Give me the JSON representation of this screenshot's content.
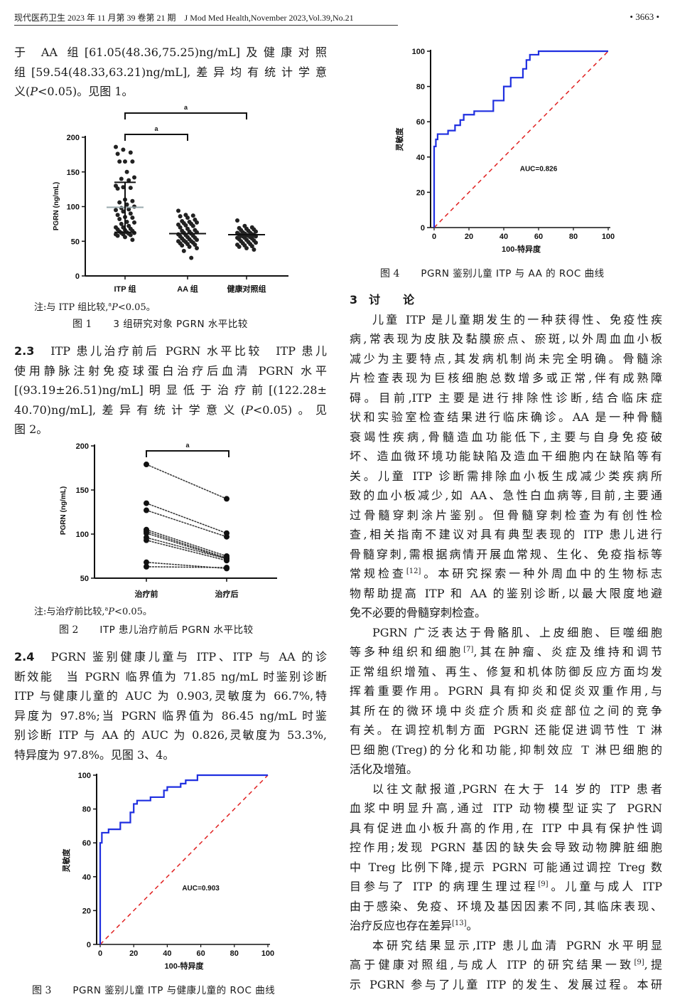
{
  "header": {
    "journal": "现代医药卫生 2023 年 11 月第 39 卷第 21 期　J Mod Med Health,November 2023,Vol.39,No.21",
    "page": "• 3663 •"
  },
  "left": {
    "para_intro": [
      [
        "于 AA 组[61.05(48.36,75.25)ng/mL]及健康对照"
      ],
      [
        "组[59.54(48.33,63.21)ng/mL],差异均有统计学意"
      ],
      [
        "义(",
        {
          "i": "P"
        },
        "<0.05)。见图 1。"
      ]
    ],
    "section_2_3": [
      [
        {
          "b": "2.3"
        },
        "　ITP 患儿治疗前后 PGRN 水平比较　ITP 患儿"
      ],
      [
        "使用静脉注射免疫球蛋白治疗后血清 PGRN 水平"
      ],
      [
        "[(93.19±26.51)ng/mL]明显低于治疗前[(122.28±"
      ],
      [
        "40.70)ng/mL],差异有统计学意义(",
        {
          "i": "P"
        },
        "<0.05)。见"
      ],
      [
        "图 2。"
      ]
    ],
    "section_2_4": [
      [
        {
          "b": "2.4"
        },
        "　PGRN 鉴别健康儿童与 ITP、ITP 与 AA 的诊"
      ],
      [
        "断效能　当 PGRN 临界值为 71.85 ng/mL 时鉴别诊断"
      ],
      [
        "ITP 与健康儿童的 AUC 为 0.903,灵敏度为 66.7%,特"
      ],
      [
        "异度为 97.8%;当 PGRN 临界值为 86.45 ng/mL 时鉴"
      ],
      [
        "别诊断 ITP 与 AA 的 AUC 为 0.826,灵敏度为 53.3%,"
      ],
      [
        "特异度为 97.8%。见图 3、4。"
      ]
    ]
  },
  "right": {
    "heading": "3　讨　　论",
    "paragraphs": [
      [
        [
          "儿童 ITP 是儿童期发生的一种获得性、免疫性疾"
        ],
        [
          "病,常表现为皮肤及黏膜瘀点、瘀斑,以外周血血小板"
        ],
        [
          "减少为主要特点,其发病机制尚未完全明确。骨髓涂"
        ],
        [
          "片检查表现为巨核细胞总数增多或正常,伴有成熟障"
        ],
        [
          "碍。目前,ITP 主要是进行排除性诊断,结合临床症"
        ],
        [
          "状和实验室检查结果进行临床确诊。AA 是一种骨髓"
        ],
        [
          "衰竭性疾病,骨髓造血功能低下,主要与自身免疫破"
        ],
        [
          "坏、造血微环境功能缺陷及造血干细胞内在缺陷等有"
        ],
        [
          "关。儿童 ITP 诊断需排除血小板生成减少类疾病所"
        ],
        [
          "致的血小板减少,如 AA、急性白血病等,目前,主要通"
        ],
        [
          "过骨髓穿刺涂片鉴别。但骨髓穿刺检查为有创性检"
        ],
        [
          "查,相关指南不建议对具有典型表现的 ITP 患儿进行"
        ],
        [
          "骨髓穿刺,需根据病情开展血常规、生化、免疫指标等"
        ],
        [
          "常规检查",
          {
            "sup": "[12]"
          },
          "。本研究探索一种外周血中的生物标志"
        ],
        [
          "物帮助提高 ITP 和 AA 的鉴别诊断,以最大限度地避"
        ],
        [
          "免不必要的骨髓穿刺检查。"
        ]
      ],
      [
        [
          "PGRN 广泛表达于骨骼肌、上皮细胞、巨噬细胞"
        ],
        [
          "等多种组织和细胞",
          {
            "sup": "[7]"
          },
          ",其在肿瘤、炎症及维持和调节"
        ],
        [
          "正常组织增殖、再生、修复和机体防御反应方面均发"
        ],
        [
          "挥着重要作用。PGRN 具有抑炎和促炎双重作用,与"
        ],
        [
          "其所在的微环境中炎症介质和炎症部位之间的竞争"
        ],
        [
          "有关。在调控机制方面 PGRN 还能促进调节性 T 淋"
        ],
        [
          "巴细胞(Treg)的分化和功能,抑制效应 T 淋巴细胞的"
        ],
        [
          "活化及增殖。"
        ]
      ],
      [
        [
          "以往文献报道,PGRN 在大于 14 岁的 ITP 患者"
        ],
        [
          "血浆中明显升高,通过 ITP 动物模型证实了 PGRN"
        ],
        [
          "具有促进血小板升高的作用,在 ITP 中具有保护性调"
        ],
        [
          "控作用;发现 PGRN 基因的缺失会导致动物脾脏细胞"
        ],
        [
          "中 Treg 比例下降,提示 PGRN 可能通过调控 Treg 数"
        ],
        [
          "目参与了 ITP 的病理生理过程",
          {
            "sup": "[9]"
          },
          "。儿童与成人 ITP"
        ],
        [
          "由于感染、免疫、环境及基因因素不同,其临床表现、"
        ],
        [
          "治疗反应也存在差异",
          {
            "sup": "[13]"
          },
          "。"
        ]
      ],
      [
        [
          "本研究结果显示,ITP 患儿血清 PGRN 水平明显"
        ],
        [
          "高于健康对照组,与成人 ITP 的研究结果一致",
          {
            "sup": "[9]"
          },
          ",提"
        ],
        [
          "示 PGRN 参与了儿童 ITP 的发生、发展过程。本研"
        ]
      ]
    ]
  },
  "figures": {
    "fig1": {
      "note_prefix": "注:与 ITP 组比较,",
      "note_sup": "a",
      "note_p": "P",
      "note_suffix": "<0.05。",
      "num": "图 1",
      "title": "3 组研究对象 PGRN 水平比较"
    },
    "fig2": {
      "note_prefix": "注:与治疗前比较,",
      "note_sup": "a",
      "note_p": "P",
      "note_suffix": "<0.05。",
      "num": "图 2",
      "title": "ITP 患儿治疗前后 PGRN 水平比较"
    },
    "fig3": {
      "num": "图 3",
      "title": "PGRN 鉴别儿童 ITP 与健康儿童的 ROC 曲线"
    },
    "fig4": {
      "num": "图 4",
      "title": "PGRN 鉴别儿童 ITP 与 AA 的 ROC 曲线"
    }
  },
  "chart_data": [
    {
      "type": "scatter",
      "ylabel": "PGRN (ng/mL)",
      "ylim": [
        0,
        200
      ],
      "yticks": [
        "0",
        "50",
        "100",
        "150",
        "200"
      ],
      "categories": [
        "ITP 组",
        "AA 组",
        "健康对照组"
      ],
      "series": [
        {
          "values": [
            186,
            182,
            178,
            176,
            165,
            165,
            165,
            150,
            142,
            140,
            138,
            130,
            128,
            127,
            126,
            110,
            108,
            106,
            103,
            100,
            98,
            96,
            95,
            93,
            90,
            88,
            85,
            84,
            82,
            78,
            77,
            75,
            72,
            70,
            70,
            68,
            67,
            66,
            65,
            64,
            63,
            62,
            62,
            61,
            60,
            60,
            59,
            58,
            56,
            52
          ]
        },
        {
          "values": [
            94,
            88,
            87,
            86,
            84,
            81,
            79,
            78,
            77,
            76,
            75,
            74,
            73,
            72,
            70,
            68,
            66,
            65,
            64,
            63,
            62,
            61,
            60,
            59,
            58,
            57,
            56,
            55,
            54,
            53,
            52,
            51,
            50,
            50,
            49,
            48,
            47,
            46,
            45,
            44,
            42,
            40,
            36,
            26
          ]
        },
        {
          "values": [
            80,
            72,
            70,
            69,
            68,
            67,
            66,
            65,
            64,
            63,
            62,
            62,
            61,
            60,
            60,
            59,
            59,
            58,
            58,
            57,
            57,
            56,
            55,
            55,
            54,
            53,
            52,
            51,
            50,
            49,
            48,
            47,
            46,
            45,
            44,
            43,
            42,
            40,
            38
          ]
        }
      ],
      "center_lines": [
        99,
        61,
        59.5
      ],
      "error_bars": [
        [
          63,
          135
        ],
        null,
        null
      ],
      "center_line_colors": [
        "#9aa9ad",
        "#111111",
        "#111111"
      ],
      "significance": [
        {
          "from": "ITP 组",
          "to": "健康对照组",
          "label": "a"
        },
        {
          "from": "ITP 组",
          "to": "AA 组",
          "label": "a"
        }
      ],
      "grid": false
    },
    {
      "type": "line",
      "ylabel": "PGRN (ng/mL)",
      "ylim": [
        50,
        200
      ],
      "yticks": [
        "50",
        "100",
        "150",
        "200"
      ],
      "categories": [
        "治疗前",
        "治疗后"
      ],
      "pairs": [
        [
          179,
          140
        ],
        [
          135,
          101
        ],
        [
          127,
          97
        ],
        [
          105,
          75
        ],
        [
          103,
          73
        ],
        [
          101,
          72
        ],
        [
          96,
          72
        ],
        [
          93,
          70
        ],
        [
          68,
          61
        ],
        [
          63,
          62
        ]
      ],
      "significance": [
        {
          "from": "治疗前",
          "to": "治疗后",
          "label": "a"
        }
      ],
      "grid": false
    },
    {
      "type": "line",
      "xlabel": "100-特异度",
      "ylabel": "灵敏度",
      "xlim": [
        0,
        100
      ],
      "ylim": [
        0,
        100
      ],
      "xticks": [
        "0",
        "20",
        "40",
        "60",
        "80",
        "100"
      ],
      "yticks": [
        "0",
        "20",
        "40",
        "60",
        "80",
        "100"
      ],
      "annotation": "AUC=0.903",
      "roc": [
        [
          0,
          0
        ],
        [
          0,
          60
        ],
        [
          1,
          60
        ],
        [
          1,
          66
        ],
        [
          5,
          66
        ],
        [
          5,
          68
        ],
        [
          12,
          68
        ],
        [
          12,
          72
        ],
        [
          18,
          72
        ],
        [
          18,
          78
        ],
        [
          20,
          78
        ],
        [
          20,
          83
        ],
        [
          22,
          83
        ],
        [
          22,
          85
        ],
        [
          30,
          85
        ],
        [
          30,
          87
        ],
        [
          38,
          87
        ],
        [
          38,
          91
        ],
        [
          40,
          91
        ],
        [
          40,
          93
        ],
        [
          48,
          93
        ],
        [
          48,
          95
        ],
        [
          51,
          95
        ],
        [
          51,
          97
        ],
        [
          58,
          97
        ],
        [
          58,
          100
        ],
        [
          100,
          100
        ]
      ],
      "reference": [
        [
          0,
          0
        ],
        [
          100,
          100
        ]
      ],
      "colors": {
        "roc": "#1f2fe0",
        "reference": "#e02020"
      },
      "grid": false
    },
    {
      "type": "line",
      "xlabel": "100-特异度",
      "ylabel": "灵敏度",
      "xlim": [
        0,
        100
      ],
      "ylim": [
        0,
        100
      ],
      "xticks": [
        "0",
        "20",
        "40",
        "60",
        "80",
        "100"
      ],
      "yticks": [
        "0",
        "20",
        "40",
        "60",
        "80",
        "100"
      ],
      "annotation": "AUC=0.826",
      "roc": [
        [
          0,
          0
        ],
        [
          0,
          46
        ],
        [
          1,
          46
        ],
        [
          1,
          50
        ],
        [
          2,
          50
        ],
        [
          2,
          53
        ],
        [
          8,
          53
        ],
        [
          8,
          55
        ],
        [
          12,
          55
        ],
        [
          12,
          58
        ],
        [
          15,
          58
        ],
        [
          15,
          61
        ],
        [
          17,
          61
        ],
        [
          17,
          64
        ],
        [
          23,
          64
        ],
        [
          23,
          66
        ],
        [
          34,
          66
        ],
        [
          34,
          72
        ],
        [
          40,
          72
        ],
        [
          40,
          80
        ],
        [
          44,
          80
        ],
        [
          44,
          85
        ],
        [
          51,
          85
        ],
        [
          51,
          90
        ],
        [
          53,
          90
        ],
        [
          53,
          95
        ],
        [
          55,
          95
        ],
        [
          55,
          98
        ],
        [
          60,
          98
        ],
        [
          60,
          100
        ],
        [
          100,
          100
        ]
      ],
      "reference": [
        [
          0,
          0
        ],
        [
          100,
          100
        ]
      ],
      "colors": {
        "roc": "#1f2fe0",
        "reference": "#e02020"
      },
      "grid": false
    }
  ]
}
